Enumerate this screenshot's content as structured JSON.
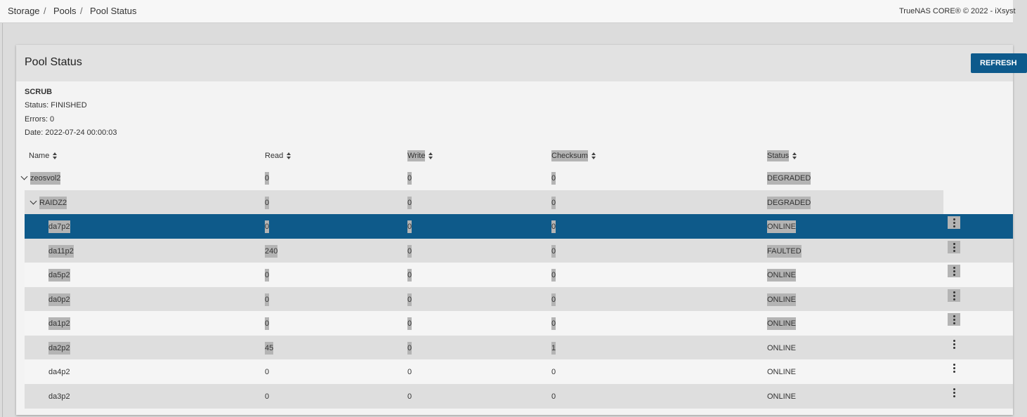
{
  "breadcrumb": [
    "Storage",
    "Pools",
    "Pool Status"
  ],
  "copyright": "TrueNAS CORE® © 2022 - iXsyst",
  "card": {
    "title": "Pool Status",
    "button": "REFRESH"
  },
  "scrub": {
    "heading": "SCRUB",
    "status": "Status: FINISHED",
    "errors": "Errors: 0",
    "date": "Date: 2022-07-24 00:00:03"
  },
  "table": {
    "columns": [
      "Name",
      "Read",
      "Write",
      "Checksum",
      "Status"
    ],
    "rows": [
      [
        "zeosvol2",
        0,
        0,
        0,
        "DEGRADED"
      ],
      [
        "RAIDZ2",
        0,
        0,
        0,
        "DEGRADED"
      ],
      [
        "da7p2",
        0,
        0,
        0,
        "ONLINE"
      ],
      [
        "da11p2",
        240,
        0,
        0,
        "FAULTED"
      ],
      [
        "da5p2",
        0,
        0,
        0,
        "ONLINE"
      ],
      [
        "da0p2",
        0,
        0,
        0,
        "ONLINE"
      ],
      [
        "da1p2",
        0,
        0,
        0,
        "ONLINE"
      ],
      [
        "da2p2",
        45,
        0,
        1,
        "ONLINE"
      ],
      [
        "da4p2",
        0,
        0,
        0,
        "ONLINE"
      ],
      [
        "da3p2",
        0,
        0,
        0,
        "ONLINE"
      ]
    ]
  }
}
